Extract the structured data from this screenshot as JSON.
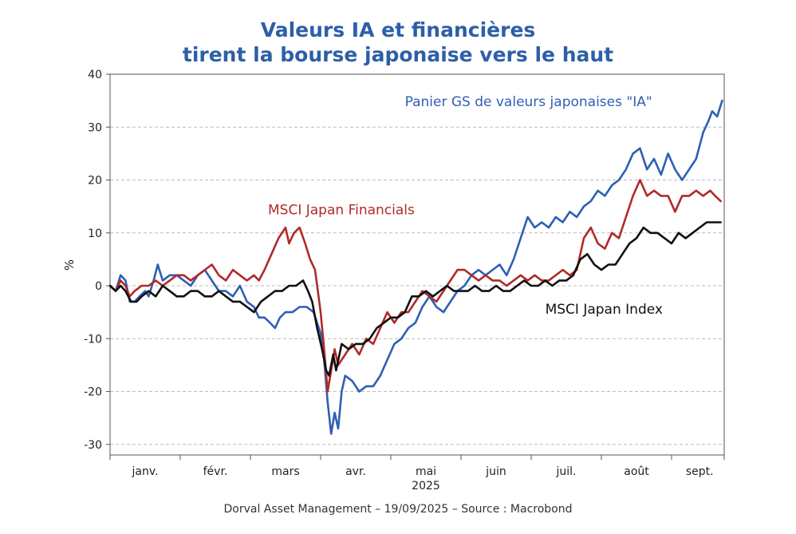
{
  "chart_data": {
    "type": "line",
    "title_line1": "Valeurs IA et financières",
    "title_line2": "tirent la bourse japonaise vers le haut",
    "ylabel": "%",
    "ylim": [
      -32,
      40
    ],
    "yticks": [
      40,
      30,
      20,
      10,
      0,
      -10,
      -20,
      -30
    ],
    "xlim": [
      0,
      8.75
    ],
    "month_ticks": [
      0,
      1,
      2,
      3,
      4,
      5,
      6,
      7,
      8,
      8.75
    ],
    "month_labels": [
      {
        "text": "janv.",
        "x": 0.5
      },
      {
        "text": "févr.",
        "x": 1.5
      },
      {
        "text": "mars",
        "x": 2.5
      },
      {
        "text": "avr.",
        "x": 3.5
      },
      {
        "text": "mai",
        "x": 4.5
      },
      {
        "text": "juin",
        "x": 5.5
      },
      {
        "text": "juil.",
        "x": 6.5
      },
      {
        "text": "août",
        "x": 7.5
      },
      {
        "text": "sept.",
        "x": 8.4
      }
    ],
    "year_label": {
      "text": "2025",
      "x": 4.5
    },
    "grid": true,
    "series": [
      {
        "name": "Panier GS de valeurs japonaises \"IA\"",
        "color": "#2e5fb5",
        "label_anchor": {
          "x": 4.2,
          "y": 34
        },
        "points": [
          [
            0.0,
            0
          ],
          [
            0.08,
            -1
          ],
          [
            0.15,
            2
          ],
          [
            0.22,
            1
          ],
          [
            0.28,
            -3
          ],
          [
            0.35,
            -3
          ],
          [
            0.42,
            -2
          ],
          [
            0.5,
            -1
          ],
          [
            0.55,
            -2
          ],
          [
            0.62,
            1
          ],
          [
            0.68,
            4
          ],
          [
            0.75,
            1
          ],
          [
            0.85,
            2
          ],
          [
            0.95,
            2
          ],
          [
            1.05,
            1
          ],
          [
            1.15,
            0
          ],
          [
            1.25,
            2
          ],
          [
            1.35,
            3
          ],
          [
            1.45,
            1
          ],
          [
            1.55,
            -1
          ],
          [
            1.65,
            -1
          ],
          [
            1.75,
            -2
          ],
          [
            1.85,
            0
          ],
          [
            1.95,
            -3
          ],
          [
            2.05,
            -4
          ],
          [
            2.12,
            -6
          ],
          [
            2.2,
            -6
          ],
          [
            2.28,
            -7
          ],
          [
            2.35,
            -8
          ],
          [
            2.42,
            -6
          ],
          [
            2.5,
            -5
          ],
          [
            2.6,
            -5
          ],
          [
            2.7,
            -4
          ],
          [
            2.8,
            -4
          ],
          [
            2.9,
            -5
          ],
          [
            3.0,
            -9
          ],
          [
            3.05,
            -14
          ],
          [
            3.1,
            -22
          ],
          [
            3.15,
            -28
          ],
          [
            3.2,
            -24
          ],
          [
            3.25,
            -27
          ],
          [
            3.3,
            -20
          ],
          [
            3.35,
            -17
          ],
          [
            3.45,
            -18
          ],
          [
            3.55,
            -20
          ],
          [
            3.65,
            -19
          ],
          [
            3.75,
            -19
          ],
          [
            3.85,
            -17
          ],
          [
            3.95,
            -14
          ],
          [
            4.05,
            -11
          ],
          [
            4.15,
            -10
          ],
          [
            4.25,
            -8
          ],
          [
            4.35,
            -7
          ],
          [
            4.45,
            -4
          ],
          [
            4.55,
            -2
          ],
          [
            4.65,
            -4
          ],
          [
            4.75,
            -5
          ],
          [
            4.85,
            -3
          ],
          [
            4.95,
            -1
          ],
          [
            5.05,
            0
          ],
          [
            5.15,
            2
          ],
          [
            5.25,
            3
          ],
          [
            5.35,
            2
          ],
          [
            5.45,
            3
          ],
          [
            5.55,
            4
          ],
          [
            5.65,
            2
          ],
          [
            5.75,
            5
          ],
          [
            5.85,
            9
          ],
          [
            5.95,
            13
          ],
          [
            6.05,
            11
          ],
          [
            6.15,
            12
          ],
          [
            6.25,
            11
          ],
          [
            6.35,
            13
          ],
          [
            6.45,
            12
          ],
          [
            6.55,
            14
          ],
          [
            6.65,
            13
          ],
          [
            6.75,
            15
          ],
          [
            6.85,
            16
          ],
          [
            6.95,
            18
          ],
          [
            7.05,
            17
          ],
          [
            7.15,
            19
          ],
          [
            7.25,
            20
          ],
          [
            7.35,
            22
          ],
          [
            7.45,
            25
          ],
          [
            7.55,
            26
          ],
          [
            7.65,
            22
          ],
          [
            7.75,
            24
          ],
          [
            7.85,
            21
          ],
          [
            7.95,
            25
          ],
          [
            8.05,
            22
          ],
          [
            8.15,
            20
          ],
          [
            8.25,
            22
          ],
          [
            8.35,
            24
          ],
          [
            8.45,
            29
          ],
          [
            8.52,
            31
          ],
          [
            8.58,
            33
          ],
          [
            8.65,
            32
          ],
          [
            8.72,
            35
          ]
        ]
      },
      {
        "name": "MSCI Japan Financials",
        "color": "#b02a2a",
        "label_anchor": {
          "x": 2.25,
          "y": 13.5
        },
        "points": [
          [
            0.0,
            0
          ],
          [
            0.08,
            -1
          ],
          [
            0.15,
            1
          ],
          [
            0.22,
            0
          ],
          [
            0.28,
            -2
          ],
          [
            0.35,
            -1
          ],
          [
            0.45,
            0
          ],
          [
            0.55,
            0
          ],
          [
            0.65,
            1
          ],
          [
            0.75,
            0
          ],
          [
            0.85,
            1
          ],
          [
            0.95,
            2
          ],
          [
            1.05,
            2
          ],
          [
            1.15,
            1
          ],
          [
            1.25,
            2
          ],
          [
            1.35,
            3
          ],
          [
            1.45,
            4
          ],
          [
            1.55,
            2
          ],
          [
            1.65,
            1
          ],
          [
            1.75,
            3
          ],
          [
            1.85,
            2
          ],
          [
            1.95,
            1
          ],
          [
            2.05,
            2
          ],
          [
            2.12,
            1
          ],
          [
            2.2,
            3
          ],
          [
            2.3,
            6
          ],
          [
            2.4,
            9
          ],
          [
            2.5,
            11
          ],
          [
            2.55,
            8
          ],
          [
            2.62,
            10
          ],
          [
            2.7,
            11
          ],
          [
            2.78,
            8
          ],
          [
            2.85,
            5
          ],
          [
            2.92,
            3
          ],
          [
            3.0,
            -5
          ],
          [
            3.05,
            -12
          ],
          [
            3.1,
            -20
          ],
          [
            3.15,
            -16
          ],
          [
            3.2,
            -12
          ],
          [
            3.25,
            -15
          ],
          [
            3.35,
            -13
          ],
          [
            3.45,
            -11
          ],
          [
            3.55,
            -13
          ],
          [
            3.65,
            -10
          ],
          [
            3.75,
            -11
          ],
          [
            3.85,
            -8
          ],
          [
            3.95,
            -5
          ],
          [
            4.05,
            -7
          ],
          [
            4.15,
            -5
          ],
          [
            4.25,
            -5
          ],
          [
            4.35,
            -3
          ],
          [
            4.45,
            -1
          ],
          [
            4.55,
            -2
          ],
          [
            4.65,
            -3
          ],
          [
            4.75,
            -1
          ],
          [
            4.85,
            1
          ],
          [
            4.95,
            3
          ],
          [
            5.05,
            3
          ],
          [
            5.15,
            2
          ],
          [
            5.25,
            1
          ],
          [
            5.35,
            2
          ],
          [
            5.45,
            1
          ],
          [
            5.55,
            1
          ],
          [
            5.65,
            0
          ],
          [
            5.75,
            1
          ],
          [
            5.85,
            2
          ],
          [
            5.95,
            1
          ],
          [
            6.05,
            2
          ],
          [
            6.15,
            1
          ],
          [
            6.25,
            1
          ],
          [
            6.35,
            2
          ],
          [
            6.45,
            3
          ],
          [
            6.55,
            2
          ],
          [
            6.65,
            3
          ],
          [
            6.75,
            9
          ],
          [
            6.85,
            11
          ],
          [
            6.95,
            8
          ],
          [
            7.05,
            7
          ],
          [
            7.15,
            10
          ],
          [
            7.25,
            9
          ],
          [
            7.35,
            13
          ],
          [
            7.45,
            17
          ],
          [
            7.55,
            20
          ],
          [
            7.65,
            17
          ],
          [
            7.75,
            18
          ],
          [
            7.85,
            17
          ],
          [
            7.95,
            17
          ],
          [
            8.05,
            14
          ],
          [
            8.15,
            17
          ],
          [
            8.25,
            17
          ],
          [
            8.35,
            18
          ],
          [
            8.45,
            17
          ],
          [
            8.55,
            18
          ],
          [
            8.62,
            17
          ],
          [
            8.7,
            16
          ]
        ]
      },
      {
        "name": "MSCI Japan Index",
        "color": "#111111",
        "label_anchor": {
          "x": 6.2,
          "y": -5.3
        },
        "points": [
          [
            0.0,
            0
          ],
          [
            0.08,
            -1
          ],
          [
            0.15,
            0
          ],
          [
            0.22,
            -1
          ],
          [
            0.3,
            -3
          ],
          [
            0.38,
            -3
          ],
          [
            0.45,
            -2
          ],
          [
            0.55,
            -1
          ],
          [
            0.65,
            -2
          ],
          [
            0.75,
            0
          ],
          [
            0.85,
            -1
          ],
          [
            0.95,
            -2
          ],
          [
            1.05,
            -2
          ],
          [
            1.15,
            -1
          ],
          [
            1.25,
            -1
          ],
          [
            1.35,
            -2
          ],
          [
            1.45,
            -2
          ],
          [
            1.55,
            -1
          ],
          [
            1.65,
            -2
          ],
          [
            1.75,
            -3
          ],
          [
            1.85,
            -3
          ],
          [
            1.95,
            -4
          ],
          [
            2.05,
            -5
          ],
          [
            2.15,
            -3
          ],
          [
            2.25,
            -2
          ],
          [
            2.35,
            -1
          ],
          [
            2.45,
            -1
          ],
          [
            2.55,
            0
          ],
          [
            2.65,
            0
          ],
          [
            2.75,
            1
          ],
          [
            2.82,
            -1
          ],
          [
            2.88,
            -3
          ],
          [
            2.95,
            -8
          ],
          [
            3.02,
            -12
          ],
          [
            3.08,
            -16
          ],
          [
            3.12,
            -17
          ],
          [
            3.18,
            -13
          ],
          [
            3.22,
            -16
          ],
          [
            3.3,
            -11
          ],
          [
            3.4,
            -12
          ],
          [
            3.5,
            -11
          ],
          [
            3.6,
            -11
          ],
          [
            3.7,
            -10
          ],
          [
            3.8,
            -8
          ],
          [
            3.9,
            -7
          ],
          [
            4.0,
            -6
          ],
          [
            4.1,
            -6
          ],
          [
            4.2,
            -5
          ],
          [
            4.3,
            -2
          ],
          [
            4.4,
            -2
          ],
          [
            4.5,
            -1
          ],
          [
            4.6,
            -2
          ],
          [
            4.7,
            -1
          ],
          [
            4.8,
            0
          ],
          [
            4.9,
            -1
          ],
          [
            5.0,
            -1
          ],
          [
            5.1,
            -1
          ],
          [
            5.2,
            0
          ],
          [
            5.3,
            -1
          ],
          [
            5.4,
            -1
          ],
          [
            5.5,
            0
          ],
          [
            5.6,
            -1
          ],
          [
            5.7,
            -1
          ],
          [
            5.8,
            0
          ],
          [
            5.9,
            1
          ],
          [
            6.0,
            0
          ],
          [
            6.1,
            0
          ],
          [
            6.2,
            1
          ],
          [
            6.3,
            0
          ],
          [
            6.4,
            1
          ],
          [
            6.5,
            1
          ],
          [
            6.6,
            2
          ],
          [
            6.7,
            5
          ],
          [
            6.8,
            6
          ],
          [
            6.9,
            4
          ],
          [
            7.0,
            3
          ],
          [
            7.1,
            4
          ],
          [
            7.2,
            4
          ],
          [
            7.3,
            6
          ],
          [
            7.4,
            8
          ],
          [
            7.5,
            9
          ],
          [
            7.6,
            11
          ],
          [
            7.7,
            10
          ],
          [
            7.8,
            10
          ],
          [
            7.9,
            9
          ],
          [
            8.0,
            8
          ],
          [
            8.1,
            10
          ],
          [
            8.2,
            9
          ],
          [
            8.3,
            10
          ],
          [
            8.4,
            11
          ],
          [
            8.5,
            12
          ],
          [
            8.6,
            12
          ],
          [
            8.7,
            12
          ]
        ]
      }
    ],
    "footer": "Dorval Asset Management – 19/09/2025  –   Source : Macrobond"
  }
}
